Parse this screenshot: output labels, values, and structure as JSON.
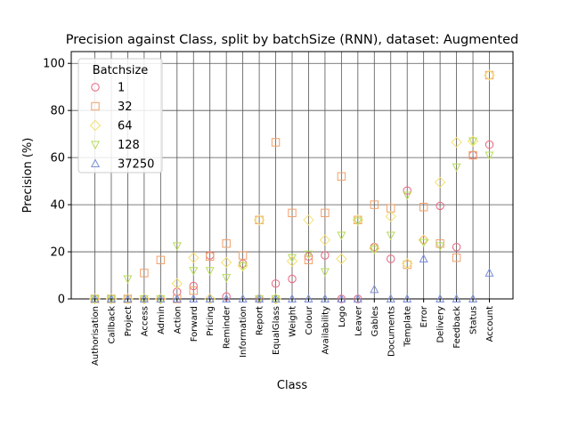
{
  "chart_data": {
    "type": "scatter",
    "title": "Precision against Class, split by batchSize (RNN), dataset: Augmented",
    "xlabel": "Class",
    "ylabel": "Precision (%)",
    "ylim": [
      0,
      105
    ],
    "yticks": [
      0,
      20,
      40,
      60,
      80,
      100
    ],
    "grid": true,
    "legend": {
      "title": "Batchsize",
      "placement": "top-left"
    },
    "categories": [
      "Authorisation",
      "Callback",
      "Project",
      "Access",
      "Admin",
      "Action",
      "Forward",
      "Pricing",
      "Reminder",
      "Information",
      "Report",
      "EqualGlass",
      "Weight",
      "Colour",
      "Availability",
      "Logo",
      "Leaver",
      "Gables",
      "Documents",
      "Template",
      "Error",
      "Delivery",
      "Feedback",
      "Status",
      "Account"
    ],
    "series": [
      {
        "name": "1",
        "marker": "circle",
        "color": "#e8647e",
        "values": [
          0,
          0,
          0,
          0,
          0,
          3,
          5.5,
          18.5,
          1,
          15,
          0,
          6.5,
          8.5,
          18,
          18.5,
          0,
          0,
          22,
          17,
          46,
          25,
          39.5,
          22,
          61,
          65.5
        ]
      },
      {
        "name": "32",
        "marker": "square",
        "color": "#f0a06a",
        "values": [
          0,
          0,
          0,
          11,
          16.5,
          0,
          3.5,
          18,
          23.5,
          18.5,
          33.5,
          66.5,
          36.5,
          16.5,
          36.5,
          52,
          33.5,
          40,
          38.5,
          14.5,
          39,
          23.5,
          17.5,
          61,
          95
        ]
      },
      {
        "name": "64",
        "marker": "diamond",
        "color": "#f5e06e",
        "values": [
          0,
          0,
          0,
          0,
          0,
          6.5,
          17.5,
          0,
          15.5,
          14,
          33.5,
          0,
          16,
          33.5,
          25,
          17,
          33.5,
          21.5,
          35,
          15,
          25,
          49.5,
          66.5,
          67,
          95
        ]
      },
      {
        "name": "128",
        "marker": "triangle-down",
        "color": "#b8dc5a",
        "values": [
          0,
          0,
          8.5,
          0,
          0,
          22.5,
          12,
          12,
          9,
          14,
          0,
          0,
          17.5,
          19,
          11.5,
          27,
          33,
          21,
          27,
          44,
          24,
          22.5,
          56,
          67,
          61
        ]
      },
      {
        "name": "37250",
        "marker": "triangle-up",
        "color": "#7b8fd6",
        "values": [
          0,
          0,
          0,
          0,
          0,
          0,
          0,
          0,
          0,
          0,
          0,
          0,
          0,
          0,
          0,
          0,
          0,
          4,
          0,
          0,
          17,
          0,
          0,
          0,
          11
        ]
      }
    ]
  }
}
